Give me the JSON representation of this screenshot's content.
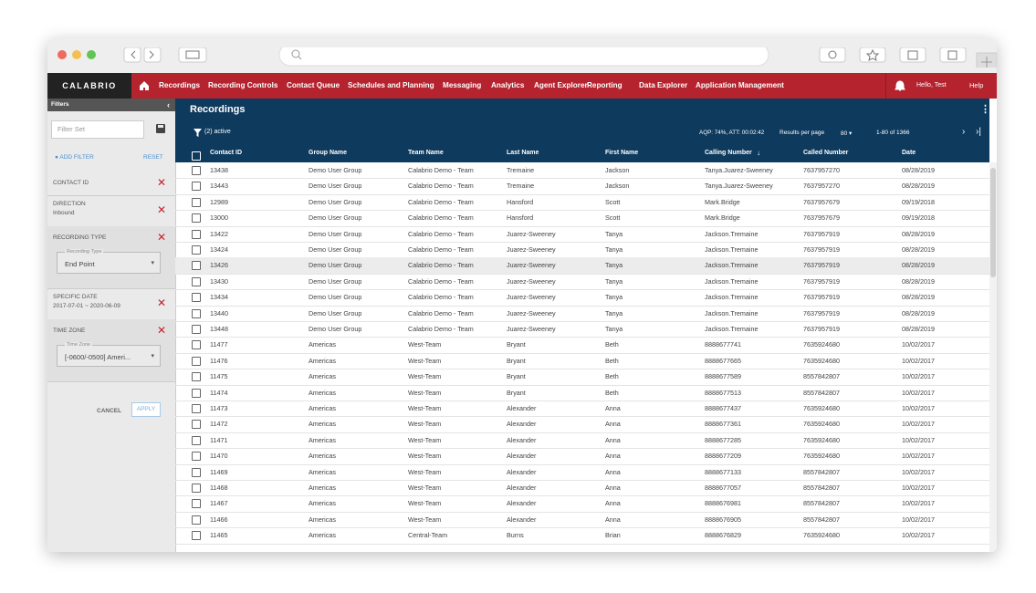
{
  "app": {
    "logo": "CALABRIO",
    "nav": [
      "Recordings",
      "Recording Controls",
      "Contact Queue",
      "Schedules and Planning",
      "Messaging",
      "Analytics",
      "Agent Explorer",
      "Reporting",
      "Data Explorer",
      "Application Management"
    ],
    "user": "Hello, Test",
    "help": "Help"
  },
  "sidebar": {
    "title": "Filters",
    "filter_set": "Filter Set",
    "add_filter": "ADD FILTER",
    "reset": "RESET",
    "filters": [
      {
        "label": "CONTACT ID"
      },
      {
        "label": "DIRECTION",
        "value": "Inbound"
      },
      {
        "label": "RECORDING TYPE",
        "field_label": "Recording Type",
        "field_value": "End Point"
      },
      {
        "label": "SPECIFIC DATE",
        "value": "2017-07-01 ~ 2020-06-09"
      },
      {
        "label": "TIME ZONE",
        "field_label": "Time Zone",
        "field_value": "[-0600/-0500] Ameri..."
      }
    ],
    "cancel": "CANCEL",
    "apply": "APPLY"
  },
  "main": {
    "title": "Recordings",
    "active_filters": "(2) active",
    "stats": "AQP: 74%, ATT: 00:02:42",
    "results_per_page": "Results per page",
    "per_page_value": "80",
    "range": "1-80 of 1366"
  },
  "table": {
    "columns": [
      "Contact ID",
      "Group Name",
      "Team Name",
      "Last Name",
      "First Name",
      "Calling Number",
      "Called Number",
      "Date"
    ],
    "rows": [
      [
        "13438",
        "Demo User Group",
        "Calabrio Demo - Team",
        "Tremaine",
        "Jackson",
        "Tanya.Juarez-Sweeney",
        "7637957270",
        "08/28/2019"
      ],
      [
        "13443",
        "Demo User Group",
        "Calabrio Demo - Team",
        "Tremaine",
        "Jackson",
        "Tanya.Juarez-Sweeney",
        "7637957270",
        "08/28/2019"
      ],
      [
        "12989",
        "Demo User Group",
        "Calabrio Demo - Team",
        "Hansford",
        "Scott",
        "Mark.Bridge",
        "7637957679",
        "09/19/2018"
      ],
      [
        "13000",
        "Demo User Group",
        "Calabrio Demo - Team",
        "Hansford",
        "Scott",
        "Mark.Bridge",
        "7637957679",
        "09/19/2018"
      ],
      [
        "13422",
        "Demo User Group",
        "Calabrio Demo - Team",
        "Juarez-Sweeney",
        "Tanya",
        "Jackson.Tremaine",
        "7637957919",
        "08/28/2019"
      ],
      [
        "13424",
        "Demo User Group",
        "Calabrio Demo - Team",
        "Juarez-Sweeney",
        "Tanya",
        "Jackson.Tremaine",
        "7637957919",
        "08/28/2019"
      ],
      [
        "13426",
        "Demo User Group",
        "Calabrio Demo - Team",
        "Juarez-Sweeney",
        "Tanya",
        "Jackson.Tremaine",
        "7637957919",
        "08/28/2019"
      ],
      [
        "13430",
        "Demo User Group",
        "Calabrio Demo - Team",
        "Juarez-Sweeney",
        "Tanya",
        "Jackson.Tremaine",
        "7637957919",
        "08/28/2019"
      ],
      [
        "13434",
        "Demo User Group",
        "Calabrio Demo - Team",
        "Juarez-Sweeney",
        "Tanya",
        "Jackson.Tremaine",
        "7637957919",
        "08/28/2019"
      ],
      [
        "13440",
        "Demo User Group",
        "Calabrio Demo - Team",
        "Juarez-Sweeney",
        "Tanya",
        "Jackson.Tremaine",
        "7637957919",
        "08/28/2019"
      ],
      [
        "13448",
        "Demo User Group",
        "Calabrio Demo - Team",
        "Juarez-Sweeney",
        "Tanya",
        "Jackson.Tremaine",
        "7637957919",
        "08/28/2019"
      ],
      [
        "11477",
        "Americas",
        "West-Team",
        "Bryant",
        "Beth",
        "8888677741",
        "7635924680",
        "10/02/2017"
      ],
      [
        "11476",
        "Americas",
        "West-Team",
        "Bryant",
        "Beth",
        "8888677665",
        "7635924680",
        "10/02/2017"
      ],
      [
        "11475",
        "Americas",
        "West-Team",
        "Bryant",
        "Beth",
        "8888677589",
        "8557842807",
        "10/02/2017"
      ],
      [
        "11474",
        "Americas",
        "West-Team",
        "Bryant",
        "Beth",
        "8888677513",
        "8557842807",
        "10/02/2017"
      ],
      [
        "11473",
        "Americas",
        "West-Team",
        "Alexander",
        "Anna",
        "8888677437",
        "7635924680",
        "10/02/2017"
      ],
      [
        "11472",
        "Americas",
        "West-Team",
        "Alexander",
        "Anna",
        "8888677361",
        "7635924680",
        "10/02/2017"
      ],
      [
        "11471",
        "Americas",
        "West-Team",
        "Alexander",
        "Anna",
        "8888677285",
        "7635924680",
        "10/02/2017"
      ],
      [
        "11470",
        "Americas",
        "West-Team",
        "Alexander",
        "Anna",
        "8888677209",
        "7635924680",
        "10/02/2017"
      ],
      [
        "11469",
        "Americas",
        "West-Team",
        "Alexander",
        "Anna",
        "8888677133",
        "8557842807",
        "10/02/2017"
      ],
      [
        "11468",
        "Americas",
        "West-Team",
        "Alexander",
        "Anna",
        "8888677057",
        "8557842807",
        "10/02/2017"
      ],
      [
        "11467",
        "Americas",
        "West-Team",
        "Alexander",
        "Anna",
        "8888676981",
        "8557842807",
        "10/02/2017"
      ],
      [
        "11466",
        "Americas",
        "West-Team",
        "Alexander",
        "Anna",
        "8888676905",
        "8557842807",
        "10/02/2017"
      ],
      [
        "11465",
        "Americas",
        "Central-Team",
        "Burns",
        "Brian",
        "8888676829",
        "7635924680",
        "10/02/2017"
      ]
    ]
  }
}
